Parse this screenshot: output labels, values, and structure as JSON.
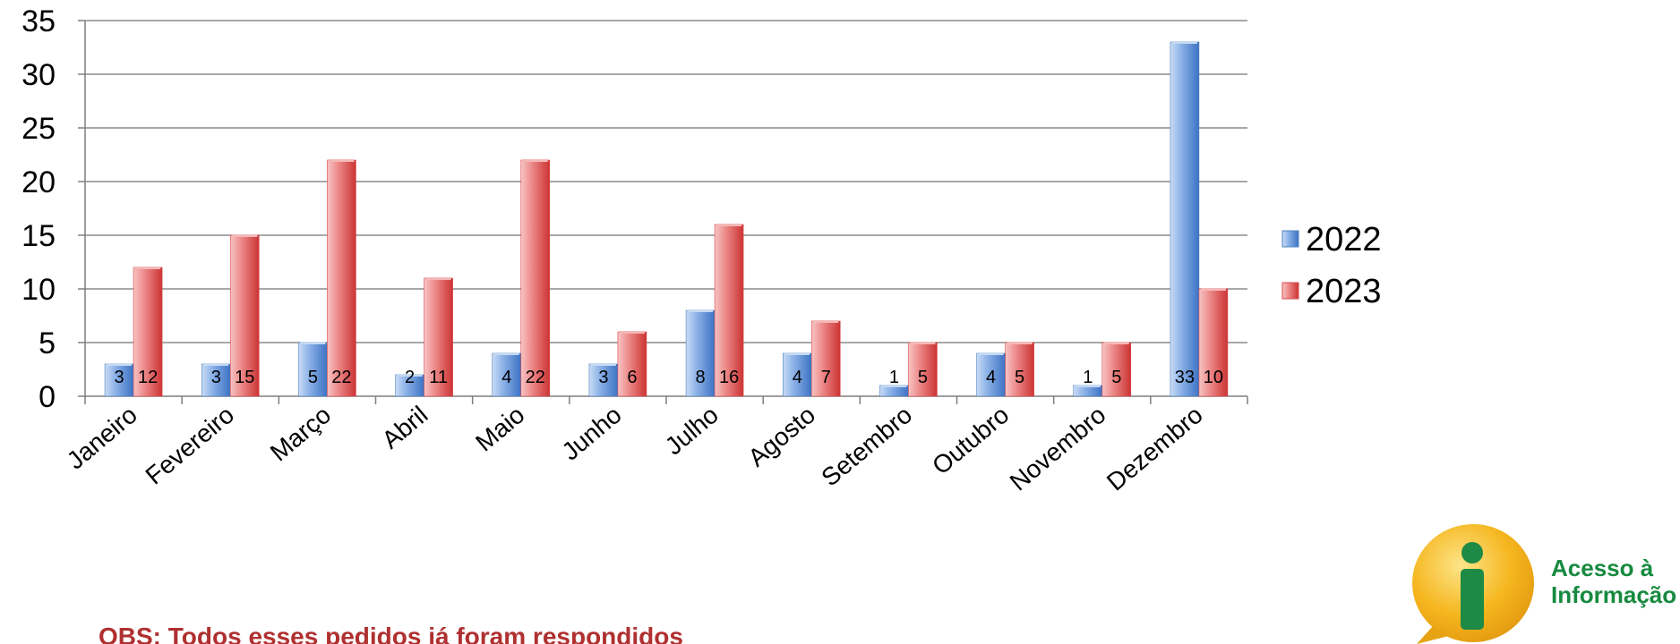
{
  "chart_data": {
    "type": "bar",
    "categories": [
      "Janeiro",
      "Fevereiro",
      "Março",
      "Abril",
      "Maio",
      "Junho",
      "Julho",
      "Agosto",
      "Setembro",
      "Outubro",
      "Novembro",
      "Dezembro"
    ],
    "series": [
      {
        "name": "2022",
        "values": [
          3,
          3,
          5,
          2,
          4,
          3,
          8,
          4,
          1,
          4,
          1,
          33
        ],
        "color": "#4f81bd"
      },
      {
        "name": "2023",
        "values": [
          12,
          15,
          22,
          11,
          22,
          6,
          16,
          7,
          5,
          5,
          5,
          10
        ],
        "color": "#d9494a"
      }
    ],
    "ylim": [
      0,
      35
    ],
    "yticks": [
      0,
      5,
      10,
      15,
      20,
      25,
      30,
      35
    ],
    "grid": true,
    "legend": "right",
    "data_labels": true
  },
  "note": "OBS: Todos esses pedidos já foram respondidos",
  "logo": {
    "line1": "Acesso à",
    "line2": "Informação",
    "bubble_color": "#f5b61e",
    "text_color": "#178a3f"
  }
}
